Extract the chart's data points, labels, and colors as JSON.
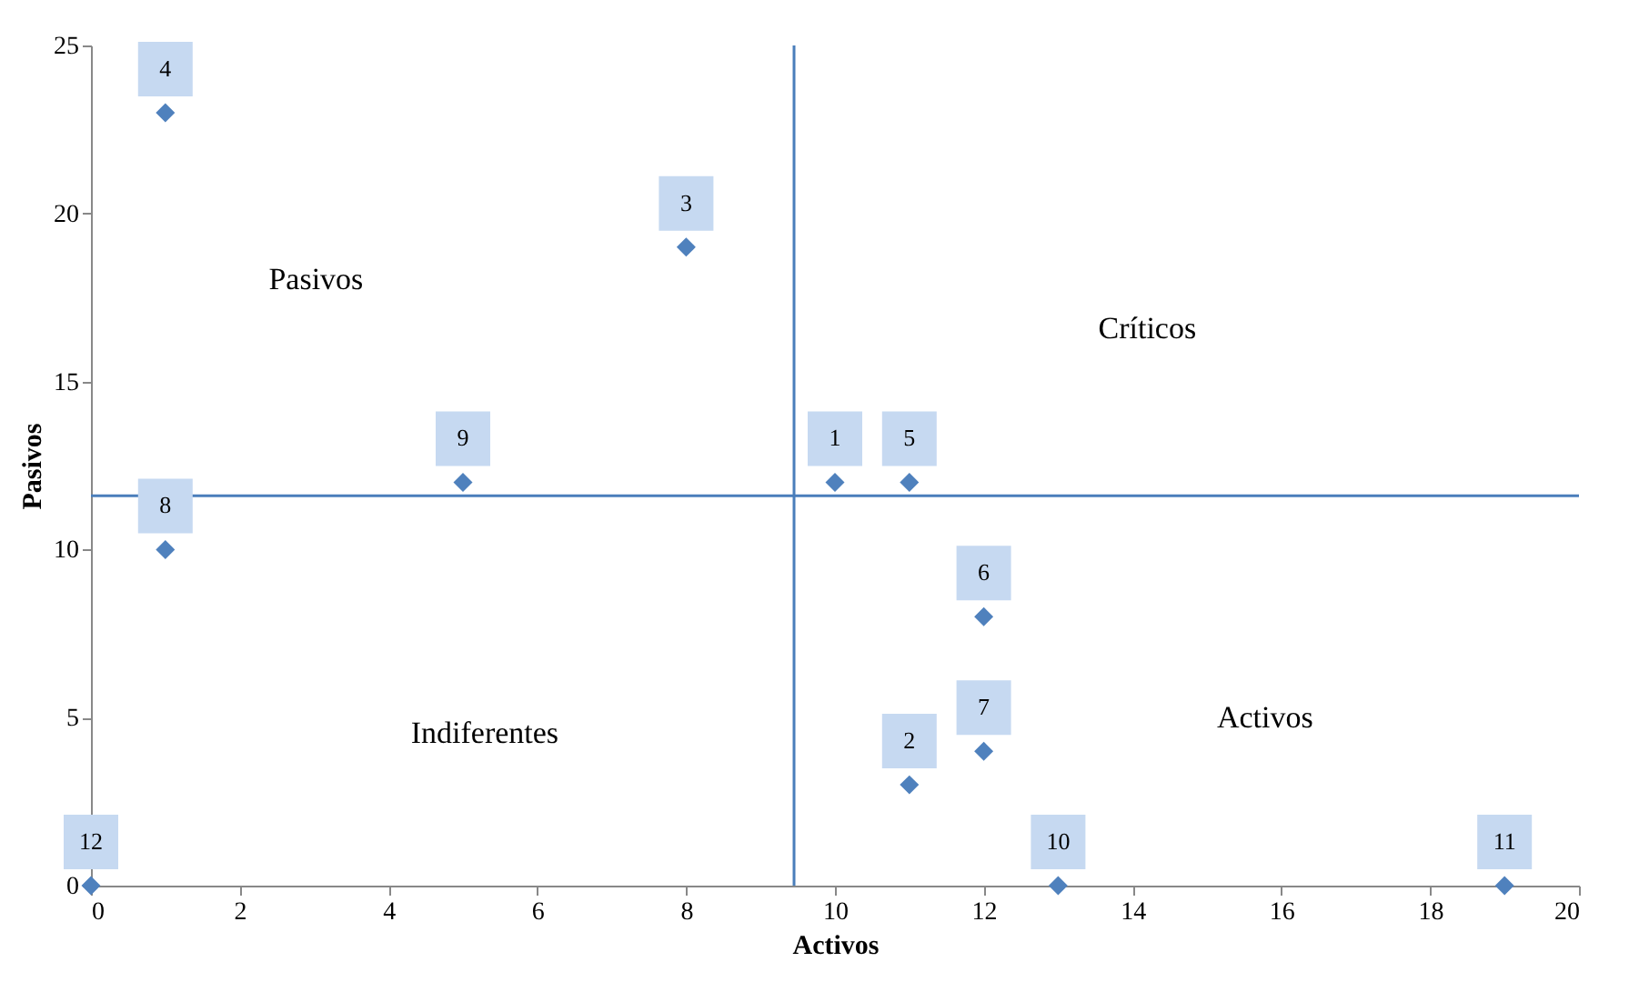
{
  "chart_data": {
    "type": "scatter",
    "xlabel": "Activos",
    "ylabel": "Pasivos",
    "series": [
      {
        "name": "1",
        "color": "#4f81bd",
        "x": [
          10
        ],
        "values": [
          12
        ]
      },
      {
        "name": "2",
        "color": "#4f81bd",
        "x": [
          11
        ],
        "values": [
          3
        ]
      },
      {
        "name": "3",
        "color": "#4f81bd",
        "x": [
          8
        ],
        "values": [
          19
        ]
      },
      {
        "name": "4",
        "color": "#4f81bd",
        "x": [
          1
        ],
        "values": [
          23
        ]
      },
      {
        "name": "5",
        "color": "#4f81bd",
        "x": [
          11
        ],
        "values": [
          12
        ]
      },
      {
        "name": "6",
        "color": "#4f81bd",
        "x": [
          12
        ],
        "values": [
          8
        ]
      },
      {
        "name": "7",
        "color": "#4f81bd",
        "x": [
          12
        ],
        "values": [
          4
        ]
      },
      {
        "name": "8",
        "color": "#4f81bd",
        "x": [
          1
        ],
        "values": [
          10
        ]
      },
      {
        "name": "9",
        "color": "#4f81bd",
        "x": [
          5
        ],
        "values": [
          12
        ]
      },
      {
        "name": "10",
        "color": "#4f81bd",
        "x": [
          13
        ],
        "values": [
          0
        ]
      },
      {
        "name": "11",
        "color": "#4f81bd",
        "x": [
          19
        ],
        "values": [
          0
        ]
      },
      {
        "name": "12",
        "color": "#4f81bd",
        "x": [
          0
        ],
        "values": [
          0
        ]
      }
    ],
    "xlim": [
      0,
      20
    ],
    "xticks": [
      0,
      2,
      4,
      6,
      8,
      10,
      12,
      14,
      16,
      18,
      20
    ],
    "ylim": [
      0,
      25
    ],
    "yticks": [
      0,
      5,
      10,
      15,
      20,
      25
    ],
    "marker": "diamond",
    "grid": false,
    "ref_lines": [
      {
        "axis": "x",
        "value": 9.45,
        "color": "#4a7ebb"
      },
      {
        "axis": "y",
        "value": 11.6,
        "color": "#4a7ebb"
      }
    ],
    "annotations": [
      "Pasivos",
      "Críticos",
      "Indiferentes",
      "Activos"
    ]
  }
}
